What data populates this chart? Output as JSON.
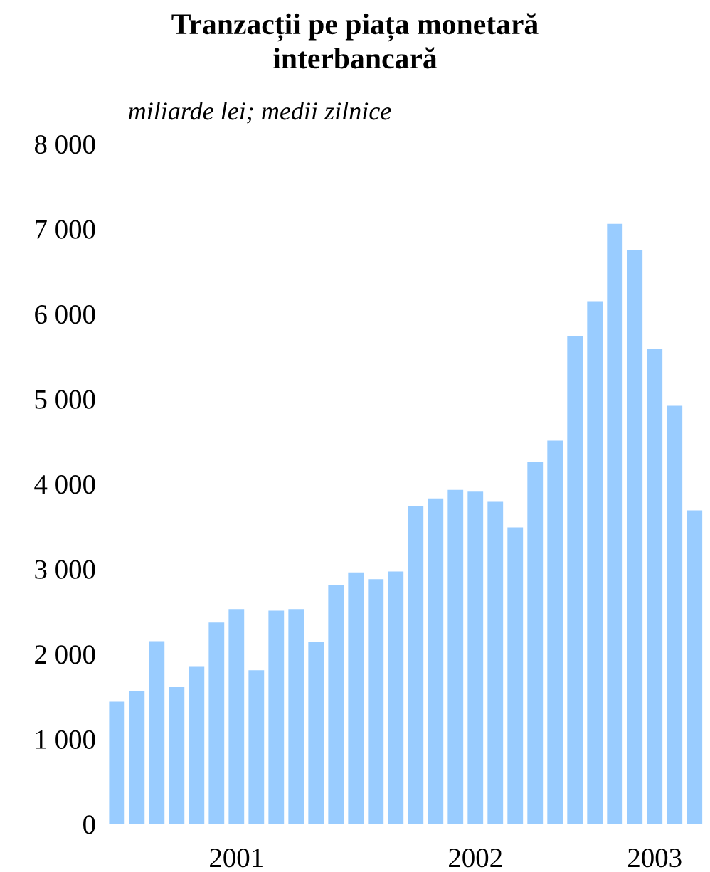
{
  "chart_data": {
    "type": "bar",
    "title": "Tranzacții pe piața monetară\ninterbancară",
    "subtitle": "miliarde lei; medii zilnice",
    "categories": [
      null,
      null,
      null,
      null,
      null,
      null,
      "2001",
      null,
      null,
      null,
      null,
      null,
      null,
      null,
      null,
      null,
      null,
      null,
      "2002",
      null,
      null,
      null,
      null,
      null,
      null,
      null,
      null,
      "2003",
      null,
      null
    ],
    "values": [
      1440,
      1560,
      2150,
      1610,
      1850,
      2370,
      2530,
      1810,
      2510,
      2530,
      2140,
      2810,
      2960,
      2880,
      2970,
      3740,
      3830,
      3930,
      3910,
      3790,
      3490,
      4260,
      4510,
      5740,
      6150,
      7060,
      6750,
      5590,
      4920,
      3690
    ],
    "color": "#99ccff",
    "ylim": [
      0,
      8000
    ],
    "yticks": [
      {
        "value": 0,
        "label": "0"
      },
      {
        "value": 1000,
        "label": "1 000"
      },
      {
        "value": 2000,
        "label": "2 000"
      },
      {
        "value": 3000,
        "label": "3 000"
      },
      {
        "value": 4000,
        "label": "4 000"
      },
      {
        "value": 5000,
        "label": "5 000"
      },
      {
        "value": 6000,
        "label": "6 000"
      },
      {
        "value": 7000,
        "label": "7 000"
      },
      {
        "value": 8000,
        "label": "8 000"
      }
    ],
    "grid": false
  }
}
